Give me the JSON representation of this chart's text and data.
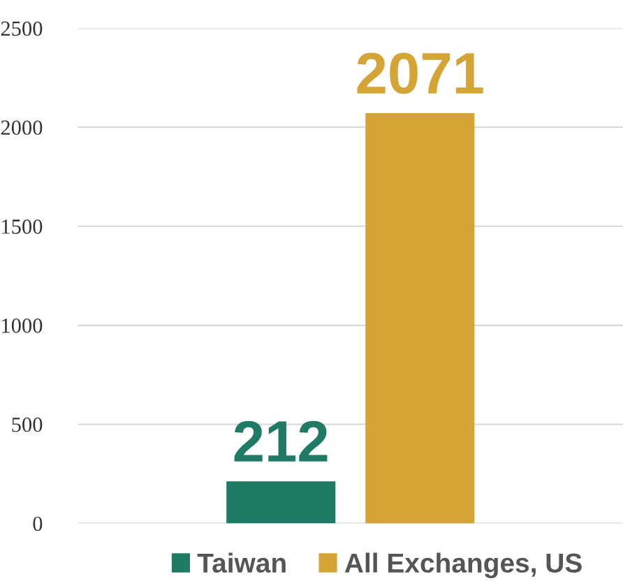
{
  "chart_data": {
    "type": "bar",
    "categories": [
      null
    ],
    "series": [
      {
        "name": "Taiwan",
        "color": "#1f7a66",
        "values": [
          212
        ]
      },
      {
        "name": "All Exchanges, US",
        "color": "#d4a535",
        "values": [
          2071
        ]
      }
    ],
    "ylim": [
      0,
      2500
    ],
    "yticks": [
      0,
      500,
      1000,
      1500,
      2000,
      2500
    ],
    "grid": "y",
    "legend": "bottom",
    "data_labels": true
  }
}
